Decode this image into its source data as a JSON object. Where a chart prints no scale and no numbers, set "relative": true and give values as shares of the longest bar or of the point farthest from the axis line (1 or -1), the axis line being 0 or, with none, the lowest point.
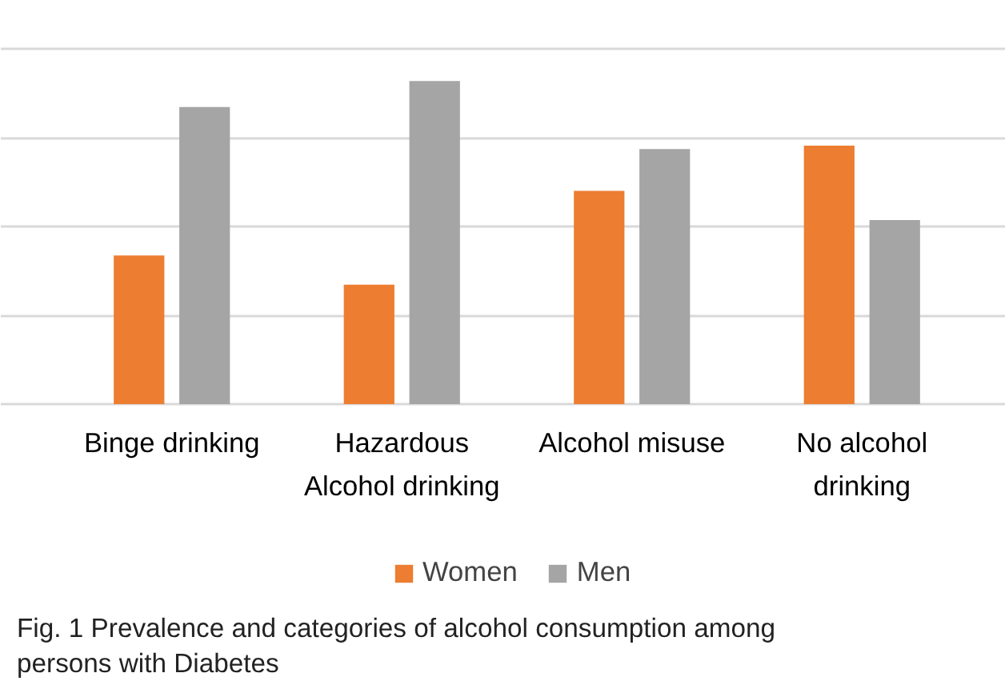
{
  "chart_data": {
    "type": "bar",
    "relative": true,
    "categories": [
      "Binge drinking",
      "Hazardous\nAlcohol drinking",
      "Alcohol misuse",
      "No alcohol\ndrinking"
    ],
    "series": [
      {
        "name": "Women",
        "color": "#ed7d31",
        "values": [
          0.46,
          0.37,
          0.66,
          0.8
        ]
      },
      {
        "name": "Men",
        "color": "#a5a5a5",
        "values": [
          0.92,
          1,
          0.79,
          0.57
        ]
      }
    ],
    "grid": "y",
    "legend": "bottom",
    "annotations": [
      "Fig. 1 Prevalence and categories of alcohol consumption among persons with Diabetes"
    ]
  }
}
